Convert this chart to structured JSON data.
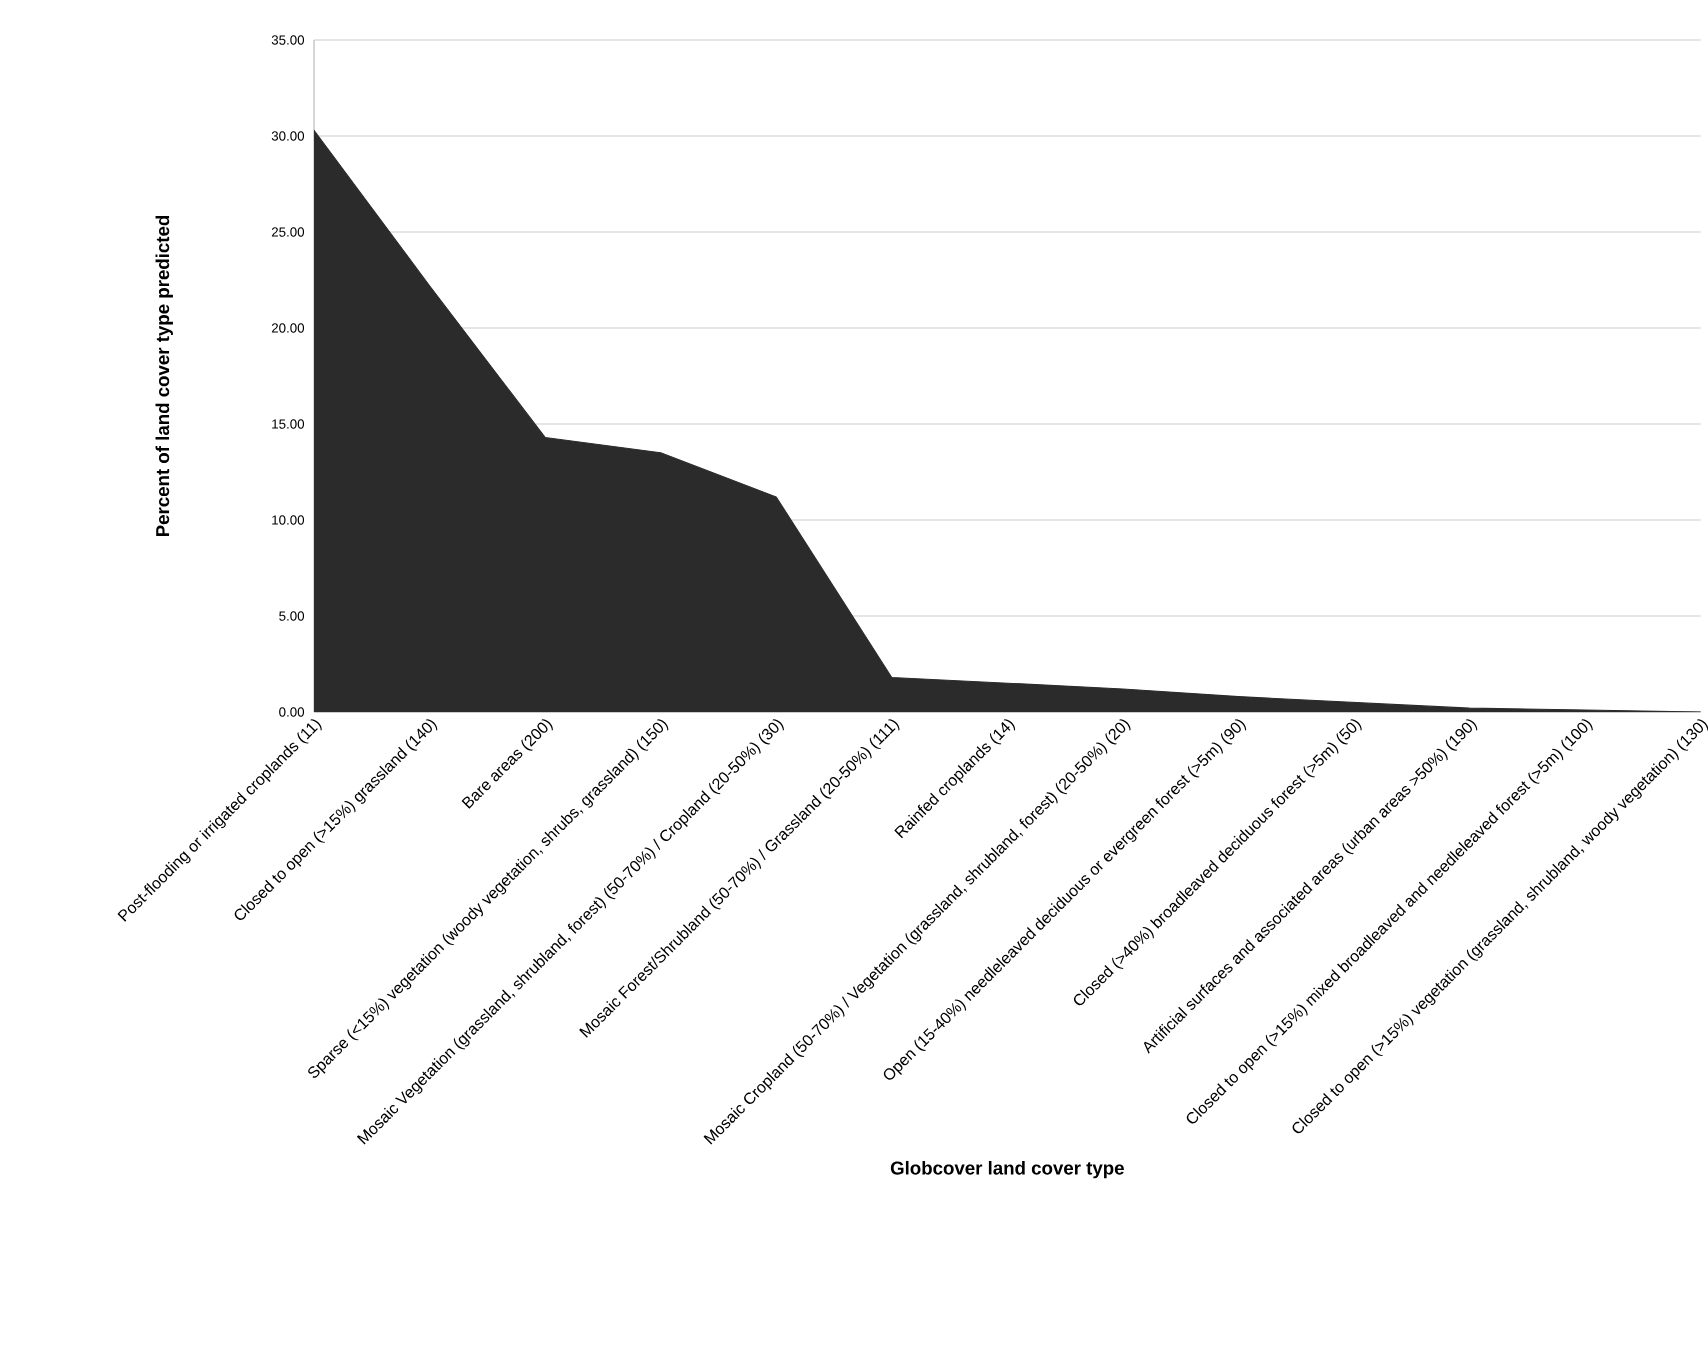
{
  "chart_data": {
    "type": "area",
    "xlabel": "Globcover land cover type",
    "ylabel": "Percent of land cover type predicted",
    "color": "#2b2b2b",
    "categories": [
      "Post-flooding or irrigated croplands (11)",
      "Closed to open (>15%) grassland (140)",
      "Bare areas (200)",
      "Sparse (<15%) vegetation (woody vegetation, shrubs, grassland) (150)",
      "Mosaic Vegetation (grassland, shrubland, forest) (50-70%) / Cropland (20-50%) (30)",
      "Mosaic Forest/Shrubland (50-70%) / Grassland (20-50%) (111)",
      "Rainfed croplands (14)",
      "Mosaic Cropland (50-70%) / Vegetation (grassland, shrubland, forest) (20-50%) (20)",
      "Open (15-40%) needleleaved deciduous or evergreen forest (>5m) (90)",
      "Closed (>40%) broadleaved deciduous forest (>5m) (50)",
      "Artificial surfaces and associated areas (urban areas >50%) (190)",
      "Closed to open (>15%) mixed broadleaved and needleleaved forest (>5m) (100)",
      "Closed to open (>15%) vegetation (grassland, shrubland, woody vegetation) (130)"
    ],
    "values": [
      30.3,
      22.2,
      14.3,
      13.5,
      11.2,
      1.8,
      1.5,
      1.2,
      0.8,
      0.5,
      0.2,
      0.1,
      0.0
    ],
    "ylim": [
      0,
      35
    ],
    "yticks": [
      {
        "value": 0,
        "label": "0.00"
      },
      {
        "value": 5,
        "label": "5.00"
      },
      {
        "value": 10,
        "label": "10.00"
      },
      {
        "value": 15,
        "label": "15.00"
      },
      {
        "value": 20,
        "label": "20.00"
      },
      {
        "value": 25,
        "label": "25.00"
      },
      {
        "value": 30,
        "label": "30.00"
      },
      {
        "value": 35,
        "label": "35.00"
      }
    ],
    "grid": "y"
  }
}
